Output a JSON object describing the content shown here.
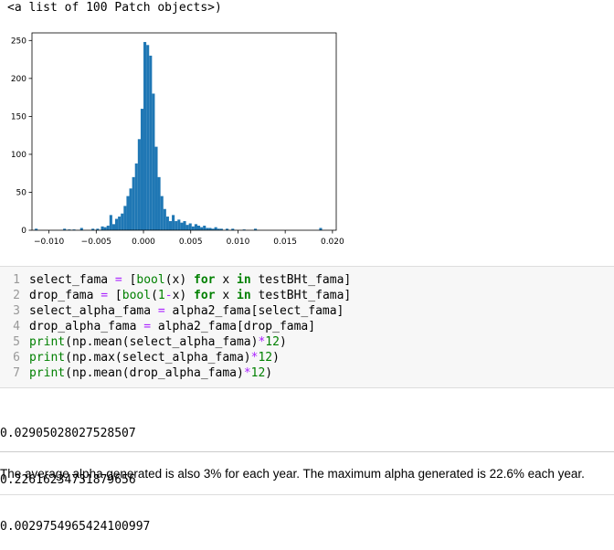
{
  "top_output": "<a list of 100 Patch objects>)",
  "chart_data": {
    "type": "bar",
    "title": "",
    "xlabel": "",
    "ylabel": "",
    "xlim": [
      -0.0118,
      0.0204
    ],
    "ylim": [
      0,
      260
    ],
    "x_ticks": [
      -0.01,
      -0.005,
      0.0,
      0.005,
      0.01,
      0.015,
      0.02
    ],
    "x_tick_labels": [
      "−0.010",
      "−0.005",
      "0.000",
      "0.005",
      "0.010",
      "0.015",
      "0.020"
    ],
    "y_ticks": [
      0,
      50,
      100,
      150,
      200,
      250
    ],
    "y_tick_labels": [
      "0",
      "50",
      "100",
      "150",
      "200",
      "250"
    ],
    "bar_color": "#1f77b4",
    "grid": false,
    "bins": [
      {
        "x0": -0.0115,
        "x1": -0.0112,
        "count": 2
      },
      {
        "x0": -0.0085,
        "x1": -0.0082,
        "count": 2
      },
      {
        "x0": -0.008,
        "x1": -0.0077,
        "count": 1
      },
      {
        "x0": -0.0075,
        "x1": -0.0072,
        "count": 1
      },
      {
        "x0": -0.0067,
        "x1": -0.0064,
        "count": 3
      },
      {
        "x0": -0.0055,
        "x1": -0.0052,
        "count": 2
      },
      {
        "x0": -0.005,
        "x1": -0.0047,
        "count": 2
      },
      {
        "x0": -0.0045,
        "x1": -0.0042,
        "count": 5
      },
      {
        "x0": -0.0042,
        "x1": -0.0039,
        "count": 4
      },
      {
        "x0": -0.0039,
        "x1": -0.0036,
        "count": 6
      },
      {
        "x0": -0.0036,
        "x1": -0.0033,
        "count": 20
      },
      {
        "x0": -0.0033,
        "x1": -0.003,
        "count": 8
      },
      {
        "x0": -0.003,
        "x1": -0.0027,
        "count": 15
      },
      {
        "x0": -0.0027,
        "x1": -0.0024,
        "count": 18
      },
      {
        "x0": -0.0024,
        "x1": -0.0021,
        "count": 22
      },
      {
        "x0": -0.0021,
        "x1": -0.0018,
        "count": 32
      },
      {
        "x0": -0.0018,
        "x1": -0.0015,
        "count": 45
      },
      {
        "x0": -0.0015,
        "x1": -0.0012,
        "count": 55
      },
      {
        "x0": -0.0012,
        "x1": -0.0009,
        "count": 70
      },
      {
        "x0": -0.0009,
        "x1": -0.0006,
        "count": 88
      },
      {
        "x0": -0.0006,
        "x1": -0.0003,
        "count": 120
      },
      {
        "x0": -0.0003,
        "x1": 0.0,
        "count": 160
      },
      {
        "x0": 0.0,
        "x1": 0.0003,
        "count": 248
      },
      {
        "x0": 0.0003,
        "x1": 0.0006,
        "count": 244
      },
      {
        "x0": 0.0006,
        "x1": 0.0009,
        "count": 230
      },
      {
        "x0": 0.0009,
        "x1": 0.0012,
        "count": 180
      },
      {
        "x0": 0.0012,
        "x1": 0.0015,
        "count": 110
      },
      {
        "x0": 0.0015,
        "x1": 0.0018,
        "count": 70
      },
      {
        "x0": 0.0018,
        "x1": 0.0021,
        "count": 45
      },
      {
        "x0": 0.0021,
        "x1": 0.0024,
        "count": 28
      },
      {
        "x0": 0.0024,
        "x1": 0.0027,
        "count": 18
      },
      {
        "x0": 0.0027,
        "x1": 0.003,
        "count": 12
      },
      {
        "x0": 0.003,
        "x1": 0.0033,
        "count": 20
      },
      {
        "x0": 0.0033,
        "x1": 0.0036,
        "count": 12
      },
      {
        "x0": 0.0036,
        "x1": 0.0039,
        "count": 14
      },
      {
        "x0": 0.0039,
        "x1": 0.0042,
        "count": 10
      },
      {
        "x0": 0.0042,
        "x1": 0.0045,
        "count": 12
      },
      {
        "x0": 0.0045,
        "x1": 0.0048,
        "count": 7
      },
      {
        "x0": 0.0048,
        "x1": 0.0051,
        "count": 9
      },
      {
        "x0": 0.0051,
        "x1": 0.0054,
        "count": 5
      },
      {
        "x0": 0.0054,
        "x1": 0.0057,
        "count": 8
      },
      {
        "x0": 0.0057,
        "x1": 0.006,
        "count": 6
      },
      {
        "x0": 0.006,
        "x1": 0.0063,
        "count": 4
      },
      {
        "x0": 0.0063,
        "x1": 0.0066,
        "count": 6
      },
      {
        "x0": 0.0066,
        "x1": 0.0069,
        "count": 3
      },
      {
        "x0": 0.0069,
        "x1": 0.0072,
        "count": 3
      },
      {
        "x0": 0.0072,
        "x1": 0.0075,
        "count": 2
      },
      {
        "x0": 0.0075,
        "x1": 0.0078,
        "count": 4
      },
      {
        "x0": 0.0078,
        "x1": 0.0081,
        "count": 2
      },
      {
        "x0": 0.0081,
        "x1": 0.0084,
        "count": 2
      },
      {
        "x0": 0.0087,
        "x1": 0.009,
        "count": 2
      },
      {
        "x0": 0.0093,
        "x1": 0.0096,
        "count": 2
      },
      {
        "x0": 0.0105,
        "x1": 0.0108,
        "count": 1
      },
      {
        "x0": 0.0117,
        "x1": 0.012,
        "count": 2
      },
      {
        "x0": 0.0186,
        "x1": 0.0189,
        "count": 3
      }
    ]
  },
  "code_cell": {
    "lines": [
      {
        "no": "1",
        "parts": [
          [
            "v",
            "select_fama "
          ],
          [
            "op",
            "="
          ],
          [
            "v",
            " ["
          ],
          [
            "bi",
            "bool"
          ],
          [
            "v",
            "(x) "
          ],
          [
            "kw",
            "for"
          ],
          [
            "v",
            " x "
          ],
          [
            "kw",
            "in"
          ],
          [
            "v",
            " testBHt_fama]"
          ]
        ]
      },
      {
        "no": "2",
        "parts": [
          [
            "v",
            "drop_fama "
          ],
          [
            "op",
            "="
          ],
          [
            "v",
            " ["
          ],
          [
            "bi",
            "bool"
          ],
          [
            "v",
            "("
          ],
          [
            "num",
            "1"
          ],
          [
            "op",
            "-"
          ],
          [
            "v",
            "x) "
          ],
          [
            "kw",
            "for"
          ],
          [
            "v",
            " x "
          ],
          [
            "kw",
            "in"
          ],
          [
            "v",
            " testBHt_fama]"
          ]
        ]
      },
      {
        "no": "3",
        "parts": [
          [
            "v",
            "select_alpha_fama "
          ],
          [
            "op",
            "="
          ],
          [
            "v",
            " alpha2_fama[select_fama]"
          ]
        ]
      },
      {
        "no": "4",
        "parts": [
          [
            "v",
            "drop_alpha_fama "
          ],
          [
            "op",
            "="
          ],
          [
            "v",
            " alpha2_fama[drop_fama]"
          ]
        ]
      },
      {
        "no": "5",
        "parts": [
          [
            "bi",
            "print"
          ],
          [
            "v",
            "(np.mean(select_alpha_fama)"
          ],
          [
            "op",
            "*"
          ],
          [
            "num",
            "12"
          ],
          [
            "v",
            ")"
          ]
        ]
      },
      {
        "no": "6",
        "parts": [
          [
            "bi",
            "print"
          ],
          [
            "v",
            "(np.max(select_alpha_fama)"
          ],
          [
            "op",
            "*"
          ],
          [
            "num",
            "12"
          ],
          [
            "v",
            ")"
          ]
        ]
      },
      {
        "no": "7",
        "parts": [
          [
            "bi",
            "print"
          ],
          [
            "v",
            "(np.mean(drop_alpha_fama)"
          ],
          [
            "op",
            "*"
          ],
          [
            "num",
            "12"
          ],
          [
            "v",
            ")"
          ]
        ]
      }
    ]
  },
  "outputs": [
    "0.02905028027528507",
    "0.22616234731879656",
    "0.0029754965424100997"
  ],
  "markdown_text": "The average alpha generated is also 3% for each year. The maximum alpha generated is 22.6% each year."
}
